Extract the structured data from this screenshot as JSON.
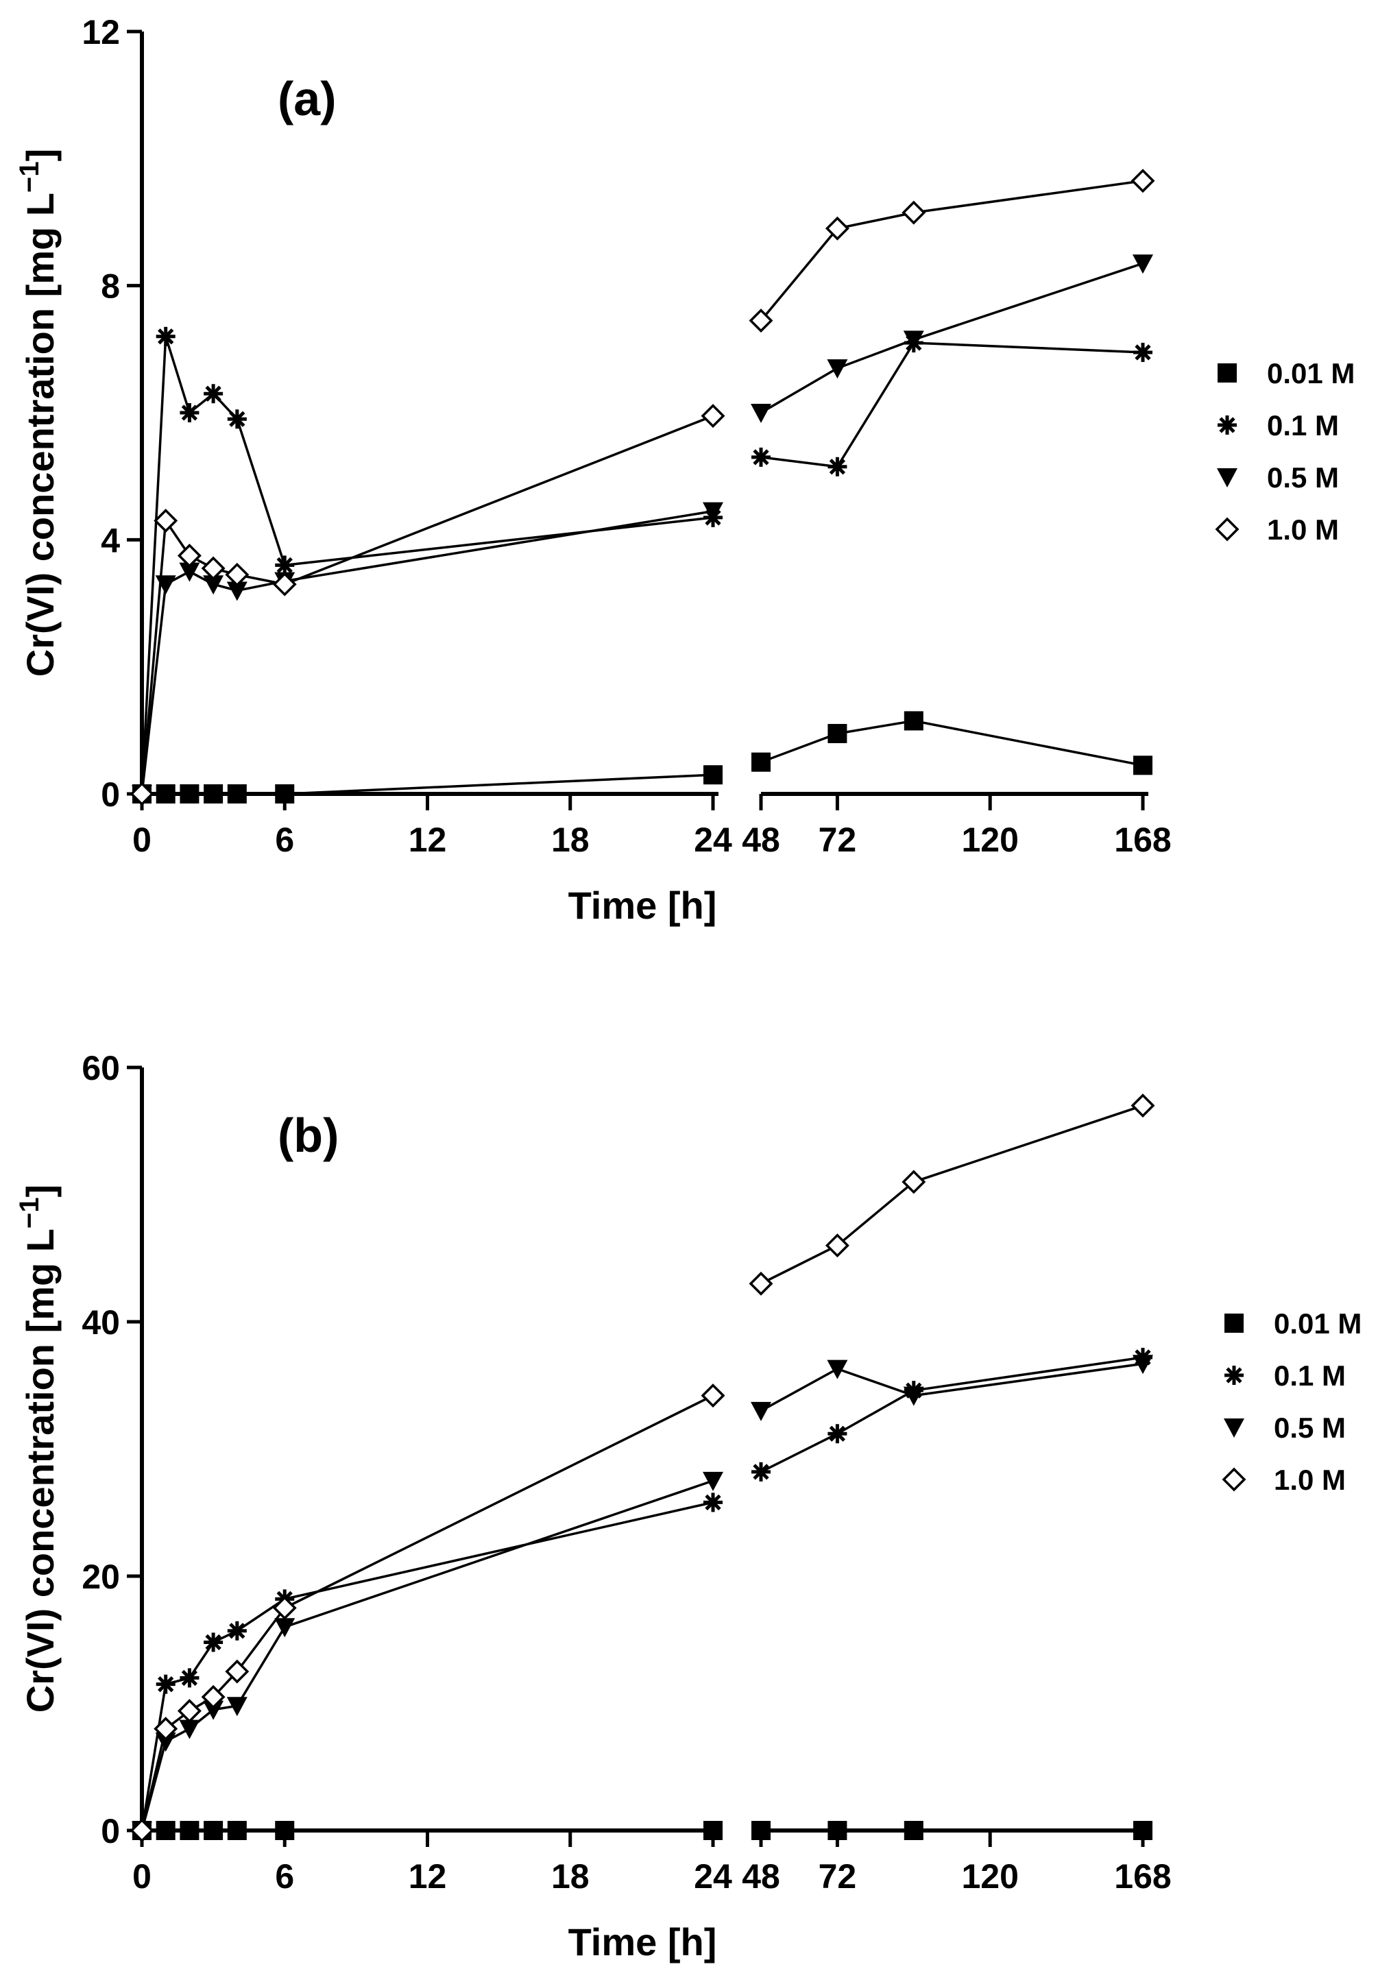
{
  "chart_data": [
    {
      "type": "line",
      "panel_label": "(a)",
      "xlabel": "Time [h]",
      "ylabel": "Cr(VI) concentration [mg L",
      "ylabel_superscript": "−1",
      "ylabel_close": "]",
      "ylim": [
        0,
        12
      ],
      "yticks": [
        0,
        4,
        8,
        12
      ],
      "x_segments": [
        {
          "range": [
            0,
            24
          ],
          "ticks": [
            0,
            6,
            12,
            18,
            24
          ]
        },
        {
          "range": [
            48,
            168
          ],
          "ticks": [
            48,
            72,
            120,
            168
          ]
        }
      ],
      "legend_position": "right",
      "series": [
        {
          "name": "0.01 M",
          "marker": "square-filled",
          "x": [
            0,
            1,
            2,
            3,
            4,
            6,
            24,
            48,
            72,
            96,
            168
          ],
          "y": [
            0,
            0,
            0,
            0,
            0,
            0,
            0.3,
            0.5,
            0.95,
            1.15,
            0.45
          ]
        },
        {
          "name": "0.1 M",
          "marker": "asterisk",
          "x": [
            0,
            1,
            2,
            3,
            4,
            6,
            24,
            48,
            72,
            96,
            168
          ],
          "y": [
            0,
            7.2,
            6.0,
            6.3,
            5.9,
            3.6,
            4.35,
            5.3,
            5.15,
            7.1,
            6.95
          ]
        },
        {
          "name": "0.5 M",
          "marker": "triangle-down-filled",
          "x": [
            0,
            1,
            2,
            3,
            4,
            6,
            24,
            48,
            72,
            96,
            168
          ],
          "y": [
            0,
            3.3,
            3.5,
            3.3,
            3.2,
            3.35,
            4.45,
            6.0,
            6.7,
            7.15,
            8.35
          ]
        },
        {
          "name": "1.0 M",
          "marker": "diamond-open",
          "x": [
            0,
            1,
            2,
            3,
            4,
            6,
            24,
            48,
            72,
            96,
            168
          ],
          "y": [
            0,
            4.3,
            3.75,
            3.55,
            3.45,
            3.3,
            5.95,
            7.45,
            8.9,
            9.15,
            9.65
          ]
        }
      ]
    },
    {
      "type": "line",
      "panel_label": "(b)",
      "xlabel": "Time [h]",
      "ylabel": "Cr(VI) concentration [mg L",
      "ylabel_superscript": "−1",
      "ylabel_close": "]",
      "ylim": [
        0,
        60
      ],
      "yticks": [
        0,
        20,
        40,
        60
      ],
      "x_segments": [
        {
          "range": [
            0,
            24
          ],
          "ticks": [
            0,
            6,
            12,
            18,
            24
          ]
        },
        {
          "range": [
            48,
            168
          ],
          "ticks": [
            48,
            72,
            120,
            168
          ]
        }
      ],
      "legend_position": "right",
      "series": [
        {
          "name": "0.01 M",
          "marker": "square-filled",
          "x": [
            0,
            1,
            2,
            3,
            4,
            6,
            24,
            48,
            72,
            96,
            168
          ],
          "y": [
            0,
            0,
            0,
            0,
            0,
            0,
            0,
            0,
            0,
            0,
            0
          ]
        },
        {
          "name": "0.1 M",
          "marker": "asterisk",
          "x": [
            0,
            1,
            2,
            3,
            4,
            6,
            24,
            48,
            72,
            96,
            168
          ],
          "y": [
            0,
            11.5,
            12.0,
            14.8,
            15.7,
            18.2,
            25.8,
            28.2,
            31.2,
            34.6,
            37.2
          ]
        },
        {
          "name": "0.5 M",
          "marker": "triangle-down-filled",
          "x": [
            0,
            1,
            2,
            3,
            4,
            6,
            24,
            48,
            72,
            96,
            168
          ],
          "y": [
            0,
            7.0,
            8.0,
            9.5,
            9.8,
            16.0,
            27.5,
            33.0,
            36.3,
            34.2,
            36.7
          ]
        },
        {
          "name": "1.0 M",
          "marker": "diamond-open",
          "x": [
            0,
            1,
            2,
            3,
            4,
            6,
            24,
            48,
            72,
            96,
            168
          ],
          "y": [
            0,
            8.0,
            9.4,
            10.5,
            12.5,
            17.5,
            34.2,
            43.0,
            46.0,
            51.0,
            57.0
          ]
        }
      ]
    }
  ]
}
